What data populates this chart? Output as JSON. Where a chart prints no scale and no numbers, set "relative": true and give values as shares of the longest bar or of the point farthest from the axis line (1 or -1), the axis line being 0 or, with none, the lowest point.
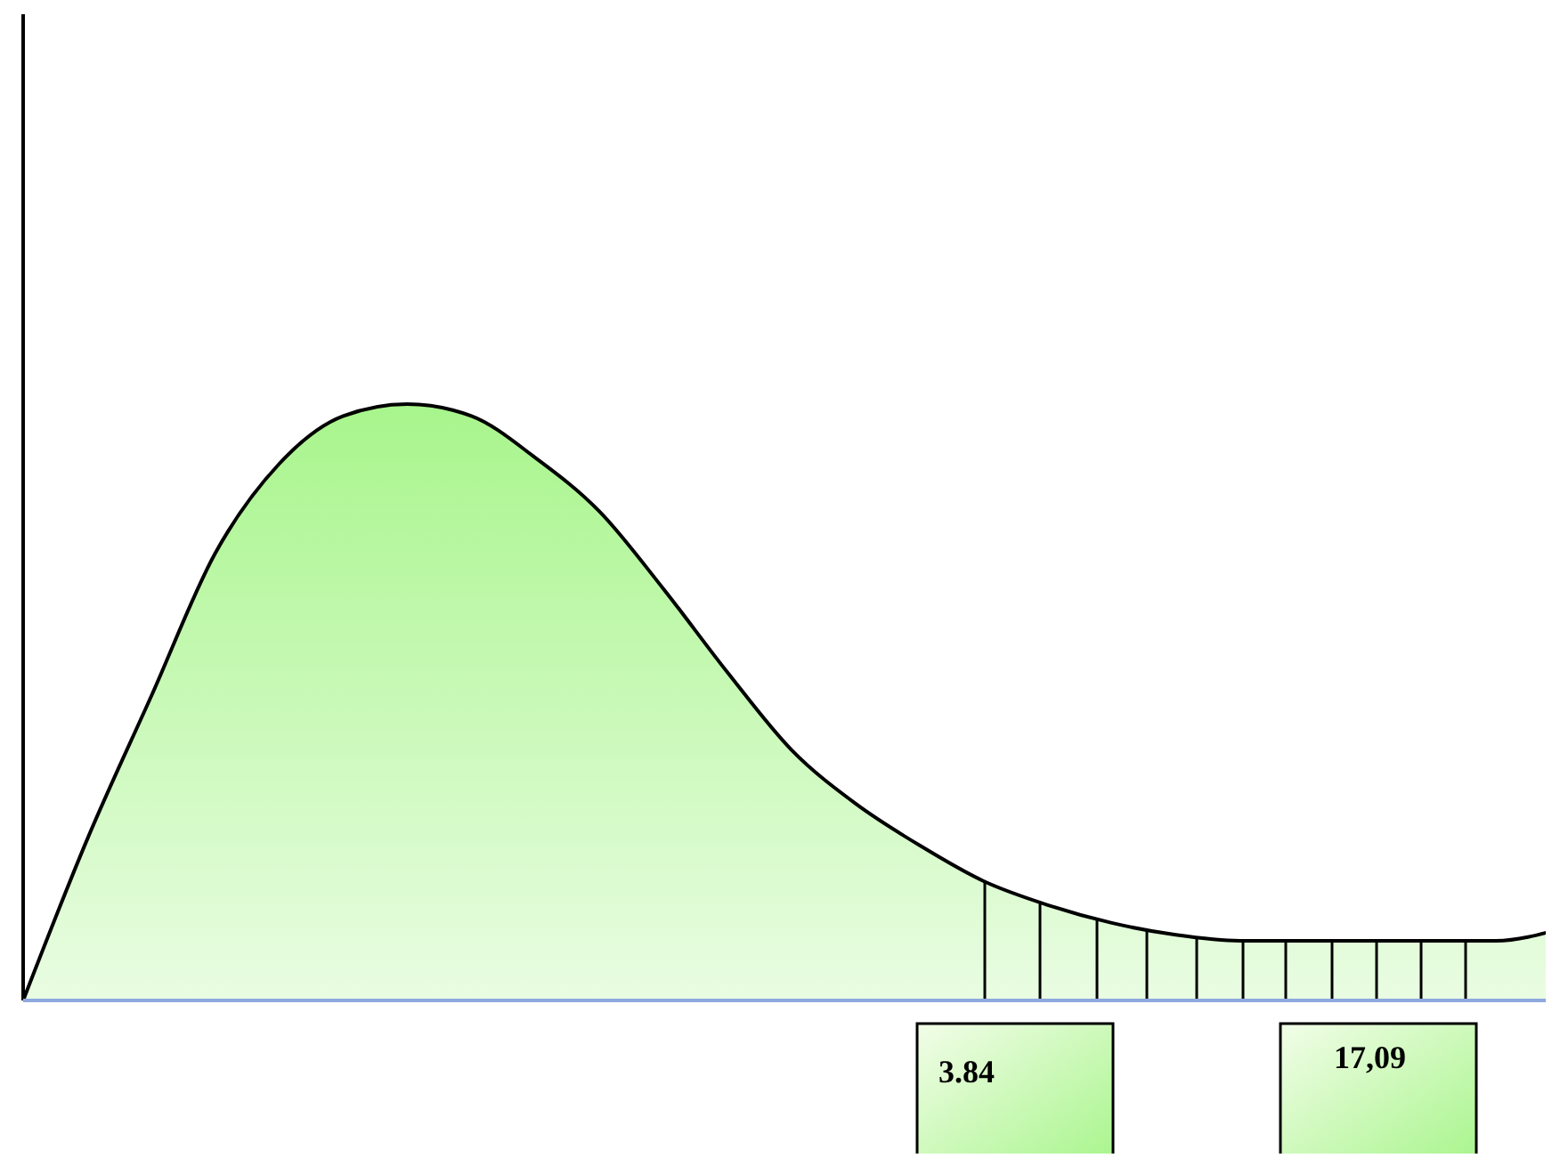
{
  "chart_data": {
    "type": "area",
    "relative": true,
    "categories": [
      null,
      null,
      null,
      null,
      null,
      null,
      null,
      null,
      null,
      null,
      null,
      null,
      null,
      null,
      null,
      null,
      null,
      null,
      null,
      null,
      null,
      null,
      null,
      null,
      null
    ],
    "series": [
      {
        "color": "#a8f58c",
        "values": [
          0,
          0.27,
          0.51,
          0.75,
          0.9,
          0.98,
          1,
          0.98,
          0.91,
          0.82,
          0.69,
          0.55,
          0.42,
          0.33,
          0.26,
          0.2,
          0.16,
          0.13,
          0.11,
          0.1,
          0.1,
          0.1,
          0.1,
          0.1,
          0.12
        ]
      }
    ],
    "annotations": [
      "3.84",
      "17,09"
    ]
  }
}
